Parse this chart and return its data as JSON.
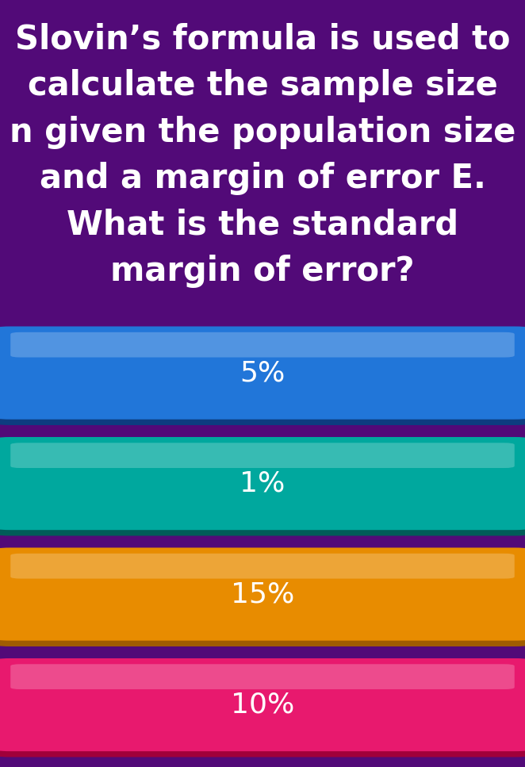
{
  "question_text": "Slovin’s formula is used to\ncalculate the sample size\nn given the population size\nand a margin of error E.\nWhat is the standard\nmargin of error?",
  "question_bg_color": "#2d0a3e",
  "question_text_color": "#ffffff",
  "answer_bg_color": "#520a78",
  "options": [
    "5%",
    "1%",
    "15%",
    "10%"
  ],
  "option_colors": [
    "#2176d9",
    "#00a89e",
    "#e88c00",
    "#e8196e"
  ],
  "option_shadow_colors": [
    "#0d3d80",
    "#005c58",
    "#a05c00",
    "#a0003a"
  ],
  "option_highlight_colors": [
    "#4aa0ff",
    "#00d4c8",
    "#ffb830",
    "#ff5090"
  ],
  "option_text_color": "#ffffff",
  "fig_width": 6.62,
  "fig_height": 9.67,
  "question_font_size": 30,
  "option_font_size": 26
}
